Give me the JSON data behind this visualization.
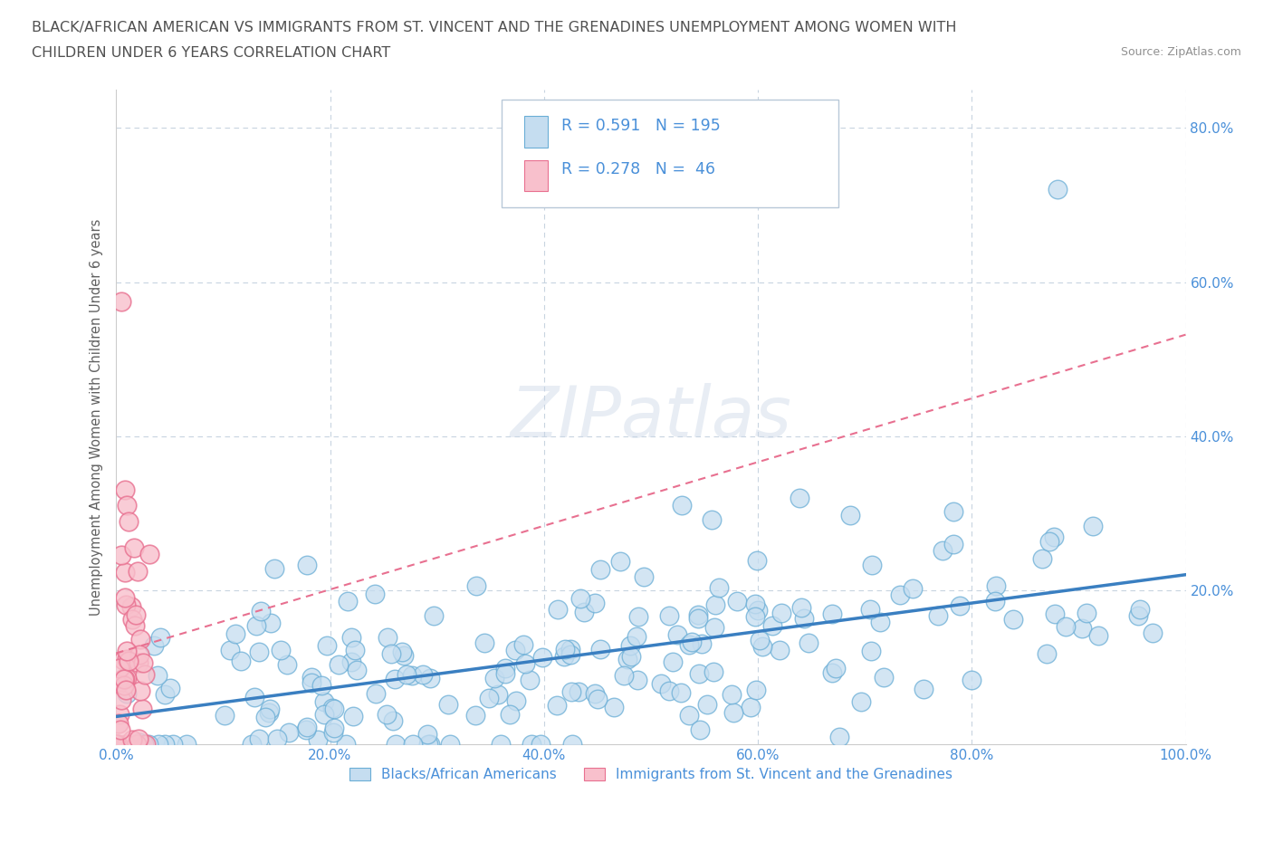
{
  "title_line1": "BLACK/AFRICAN AMERICAN VS IMMIGRANTS FROM ST. VINCENT AND THE GRENADINES UNEMPLOYMENT AMONG WOMEN WITH",
  "title_line2": "CHILDREN UNDER 6 YEARS CORRELATION CHART",
  "source": "Source: ZipAtlas.com",
  "ylabel": "Unemployment Among Women with Children Under 6 years",
  "xlim": [
    0.0,
    1.0
  ],
  "ylim": [
    0.0,
    0.85
  ],
  "xtick_labels": [
    "0.0%",
    "",
    "20.0%",
    "",
    "40.0%",
    "",
    "60.0%",
    "",
    "80.0%",
    "",
    "100.0%"
  ],
  "ytick_labels": [
    "",
    "20.0%",
    "40.0%",
    "60.0%",
    "80.0%"
  ],
  "ytick_vals": [
    0.0,
    0.2,
    0.4,
    0.6,
    0.8
  ],
  "xtick_vals": [
    0.0,
    0.1,
    0.2,
    0.3,
    0.4,
    0.5,
    0.6,
    0.7,
    0.8,
    0.9,
    1.0
  ],
  "legend1_label": "Blacks/African Americans",
  "legend2_label": "Immigrants from St. Vincent and the Grenadines",
  "blue_R": "0.591",
  "blue_N": "195",
  "pink_R": "0.278",
  "pink_N": "46",
  "blue_color": "#c5ddf0",
  "pink_color": "#f8c0cc",
  "blue_edge_color": "#6aaed6",
  "pink_edge_color": "#e87090",
  "blue_line_color": "#3a7fc1",
  "pink_line_color": "#e06080",
  "watermark": "ZIPatlas",
  "grid_color": "#c8d4e0",
  "title_color": "#505050",
  "axis_label_color": "#606060",
  "tick_color": "#4a90d9",
  "source_color": "#909090"
}
